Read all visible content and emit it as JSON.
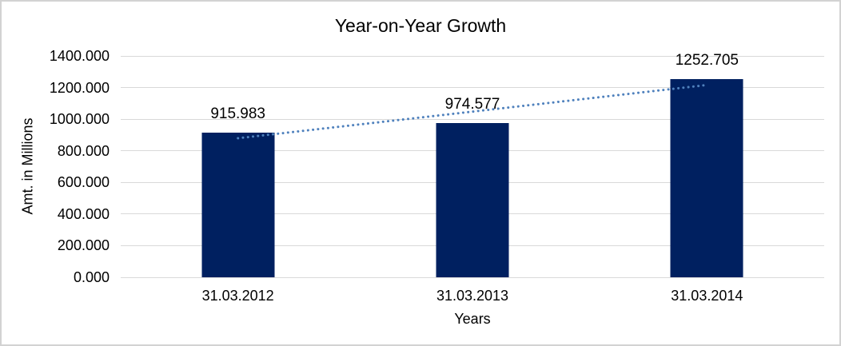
{
  "chart": {
    "title": "Year-on-Year Growth",
    "y_axis_title": "Amt. in Millions",
    "x_axis_title": "Years"
  },
  "chart_data": {
    "type": "bar",
    "title": "Year-on-Year Growth",
    "categories": [
      "31.03.2012",
      "31.03.2013",
      "31.03.2014"
    ],
    "values": [
      915.983,
      974.577,
      1252.705
    ],
    "data_labels": [
      "915.983",
      "974.577",
      "1252.705"
    ],
    "xlabel": "Years",
    "ylabel": "Amt. in Millions",
    "ylim": [
      0,
      1400
    ],
    "ytick_interval": 200,
    "ytick_labels": [
      "0.000",
      "200.000",
      "400.000",
      "600.000",
      "800.000",
      "1000.000",
      "1200.000",
      "1400.000"
    ],
    "grid": true,
    "legend_position": "none",
    "bar_color": "#002060",
    "trendline": {
      "type": "linear",
      "style": "dotted",
      "color": "#4F81BD"
    }
  },
  "colors": {
    "bar": "#002060",
    "trendline": "#4F81BD",
    "gridline": "#D9D9D9",
    "text": "#000000",
    "border": "#D2D2D2",
    "background": "#FFFFFF"
  }
}
